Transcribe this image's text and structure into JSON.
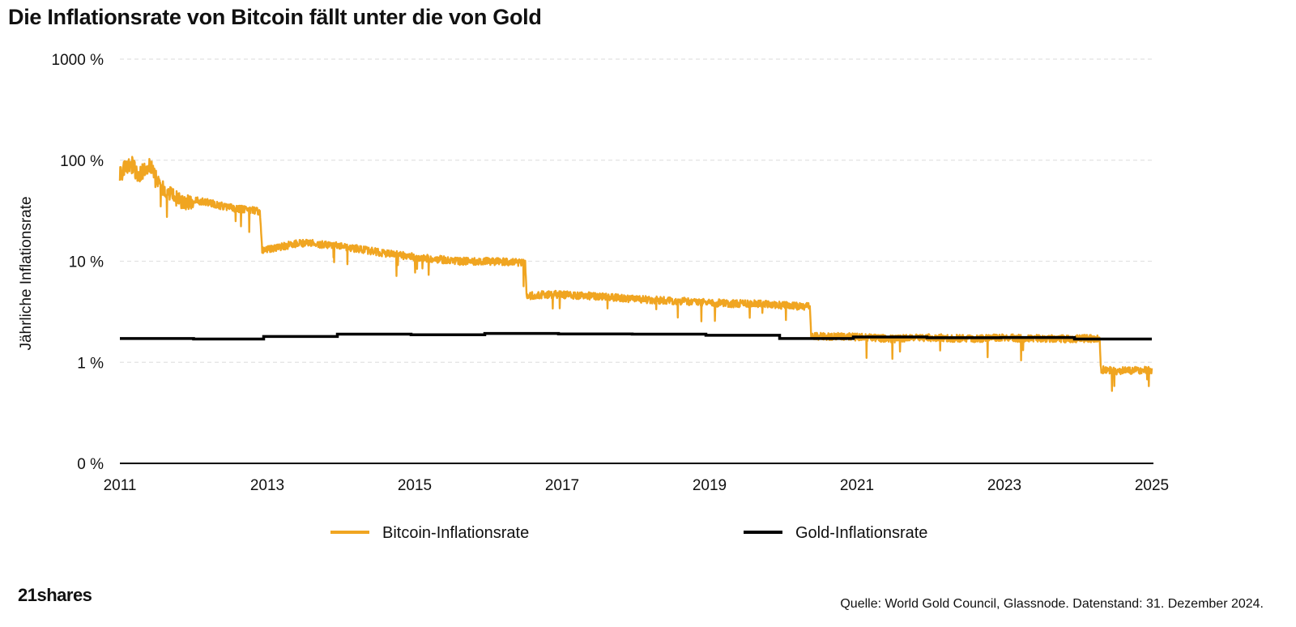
{
  "title": "Die Inflationsrate von Bitcoin fällt unter die von Gold",
  "logo_text": "21shares",
  "source_note": "Quelle: World Gold Council, Glassnode. Datenstand: 31. Dezember 2024.",
  "colors": {
    "bitcoin": "#F0A521",
    "gold": "#000000",
    "grid": "#E2E2E2",
    "axis": "#000000"
  },
  "chart_data": {
    "type": "line",
    "title": "Die Inflationsrate von Bitcoin fällt unter die von Gold",
    "xlabel": "",
    "ylabel": "Jährliche Inflationsrate",
    "yscale": "log",
    "xlim": [
      2011,
      2025
    ],
    "ylim": [
      0.1,
      1000
    ],
    "x_ticks": [
      2011,
      2013,
      2015,
      2017,
      2019,
      2021,
      2023,
      2025
    ],
    "x_tick_labels": [
      "2011",
      "2013",
      "2015",
      "2017",
      "2019",
      "2021",
      "2023",
      "2025"
    ],
    "y_ticks": [
      0.1,
      1,
      10,
      100,
      1000
    ],
    "y_tick_labels": [
      "0 %",
      "1 %",
      "10 %",
      "100 %",
      "1000 %"
    ],
    "grid": true,
    "legend_position": "bottom",
    "series": [
      {
        "name": "Bitcoin-Inflationsrate",
        "x": [
          2011.0,
          2011.08,
          2011.15,
          2011.25,
          2011.33,
          2011.42,
          2011.5,
          2011.6,
          2011.75,
          2011.9,
          2012.0,
          2012.2,
          2012.4,
          2012.6,
          2012.8,
          2012.9,
          2012.93,
          2013.0,
          2013.2,
          2013.4,
          2013.6,
          2013.8,
          2014.0,
          2014.3,
          2014.6,
          2015.0,
          2015.3,
          2015.6,
          2016.0,
          2016.3,
          2016.5,
          2016.52,
          2016.6,
          2016.9,
          2017.2,
          2017.5,
          2017.8,
          2018.1,
          2018.4,
          2018.7,
          2019.0,
          2019.3,
          2019.6,
          2019.9,
          2020.2,
          2020.36,
          2020.38,
          2020.6,
          2020.9,
          2021.2,
          2021.5,
          2021.8,
          2022.1,
          2022.4,
          2022.7,
          2023.0,
          2023.3,
          2023.6,
          2023.9,
          2024.1,
          2024.29,
          2024.31,
          2024.5,
          2024.7,
          2024.9,
          2025.0
        ],
        "values": [
          75,
          85,
          95,
          70,
          80,
          90,
          65,
          50,
          42,
          38,
          40,
          38,
          35,
          33,
          32,
          31,
          13,
          13,
          14,
          15,
          15,
          14.5,
          14,
          13,
          12,
          11,
          10.5,
          10,
          10,
          9.8,
          9.5,
          4.5,
          4.6,
          4.7,
          4.6,
          4.5,
          4.3,
          4.2,
          4.1,
          4.0,
          3.9,
          3.8,
          3.8,
          3.7,
          3.6,
          3.6,
          1.8,
          1.8,
          1.8,
          1.75,
          1.7,
          1.75,
          1.75,
          1.72,
          1.72,
          1.75,
          1.72,
          1.72,
          1.7,
          1.72,
          1.72,
          0.85,
          0.82,
          0.83,
          0.84,
          0.82
        ]
      },
      {
        "name": "Gold-Inflationsrate",
        "x": [
          2011.0,
          2012.0,
          2012.0,
          2012.95,
          2012.95,
          2013.95,
          2013.95,
          2014.95,
          2014.95,
          2015.95,
          2015.95,
          2016.95,
          2016.95,
          2017.95,
          2017.95,
          2018.95,
          2018.95,
          2019.95,
          2019.95,
          2020.95,
          2020.95,
          2021.95,
          2021.95,
          2022.95,
          2022.95,
          2023.95,
          2023.95,
          2025.0
        ],
        "values": [
          1.72,
          1.72,
          1.7,
          1.7,
          1.8,
          1.8,
          1.9,
          1.9,
          1.87,
          1.87,
          1.93,
          1.93,
          1.91,
          1.91,
          1.9,
          1.9,
          1.85,
          1.85,
          1.72,
          1.72,
          1.78,
          1.78,
          1.75,
          1.75,
          1.76,
          1.76,
          1.7,
          1.7
        ]
      }
    ]
  }
}
